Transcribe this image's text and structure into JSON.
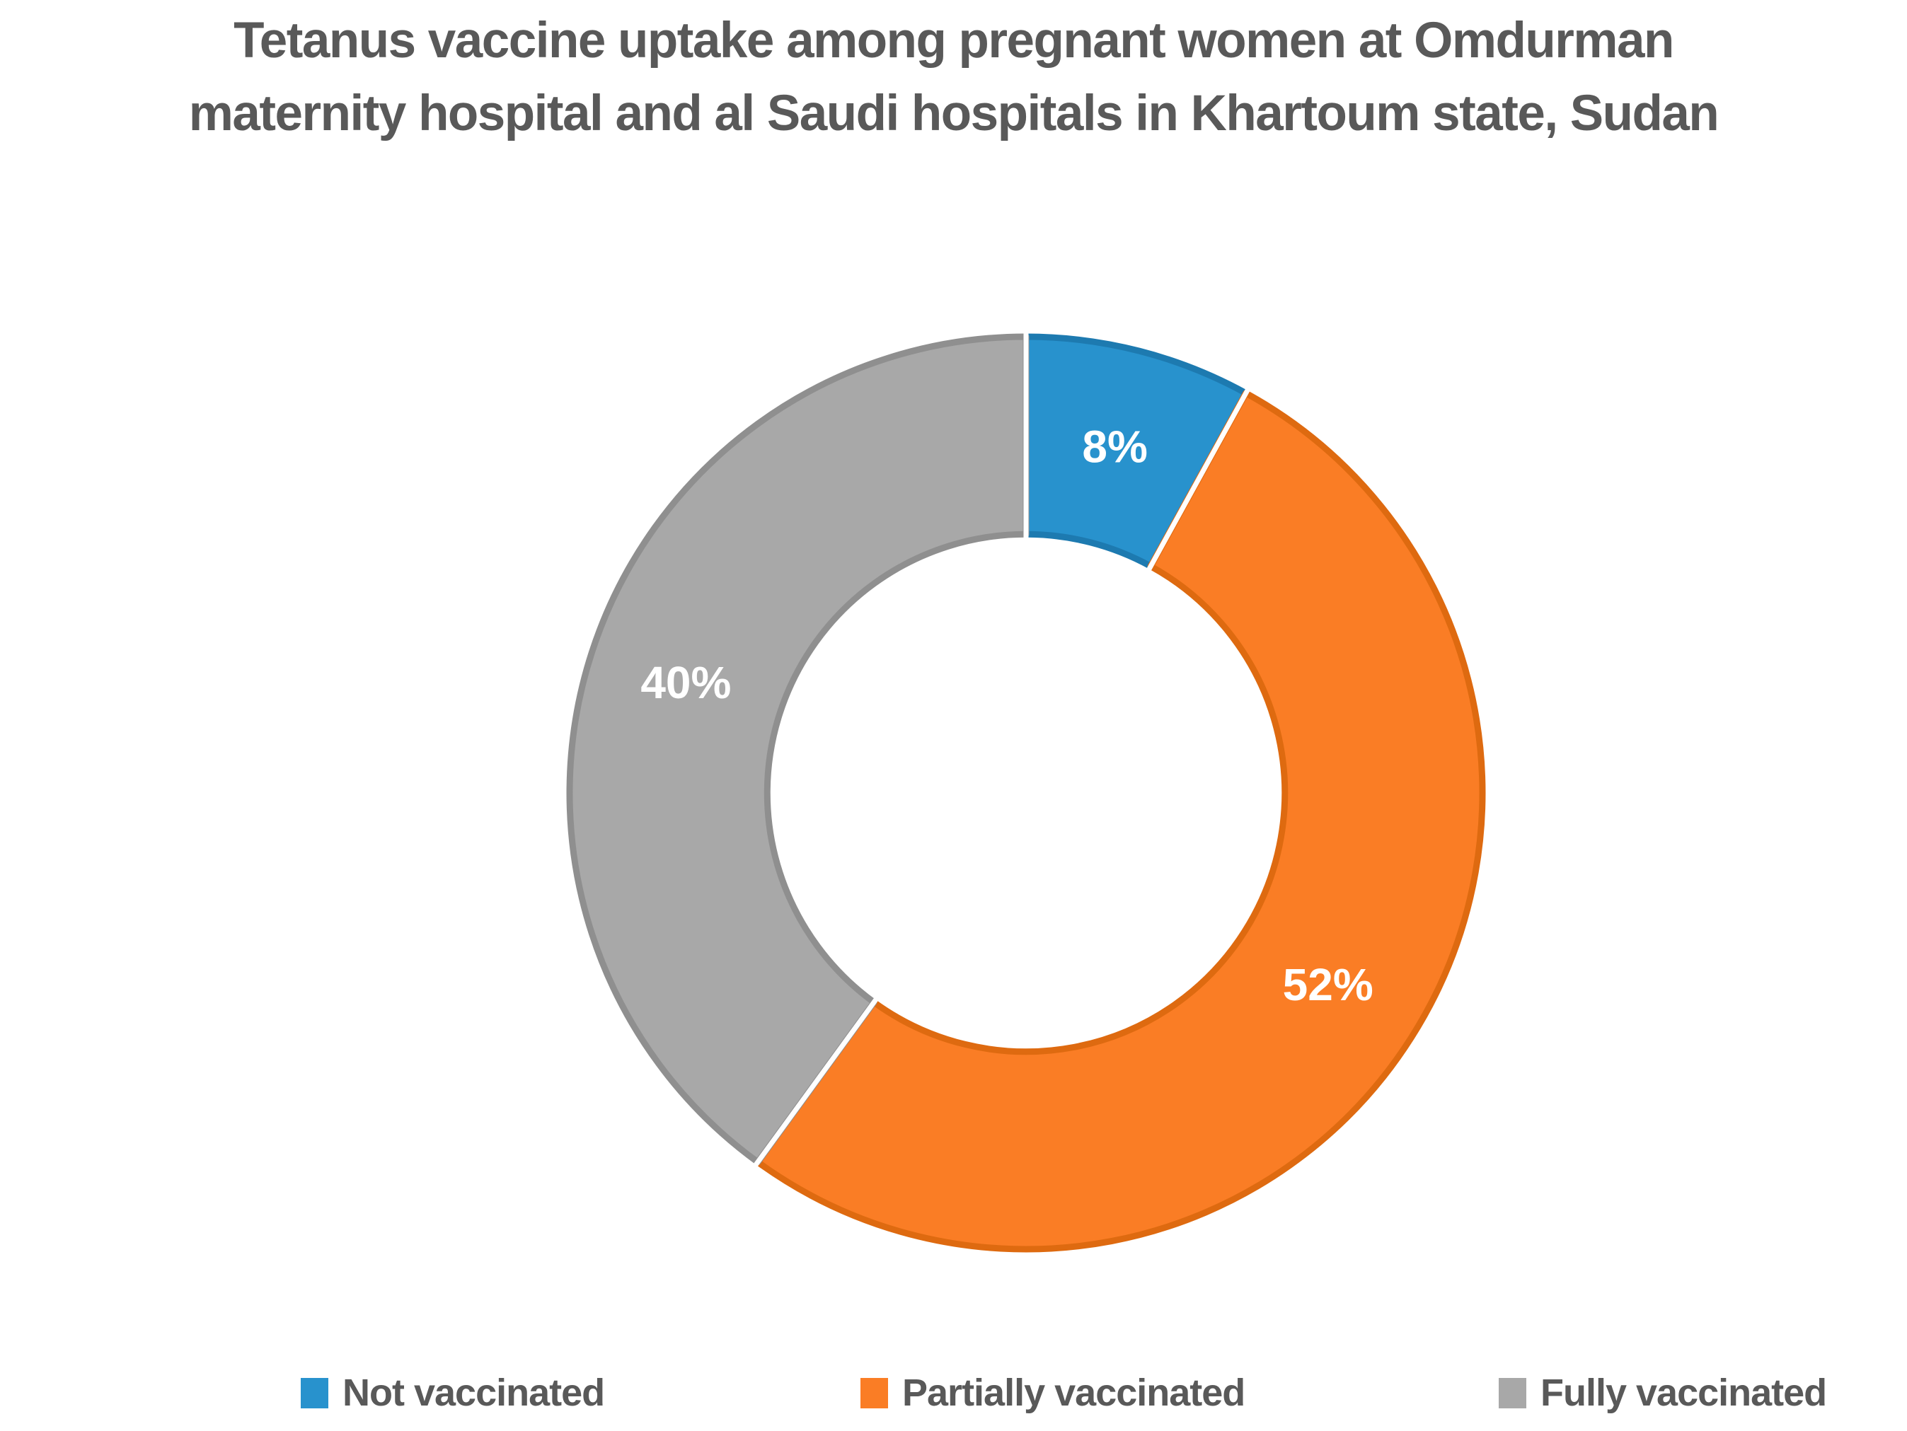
{
  "title_lines": [
    "Tetanus vaccine uptake among pregnant women at Omdurman",
    "maternity hospital and al Saudi hospitals in Khartoum state, Sudan"
  ],
  "chart_data": {
    "type": "pie",
    "subtype": "donut",
    "title": "Tetanus vaccine uptake among pregnant women at Omdurman maternity hospital and al Saudi hospitals in Khartoum state, Sudan",
    "categories": [
      "Not vaccinated",
      "Partially vaccinated",
      "Fully vaccinated"
    ],
    "values": [
      8,
      52,
      40
    ],
    "unit": "percent",
    "data_labels": [
      "8%",
      "52%",
      "40%"
    ],
    "colors": [
      "#2892CD",
      "#FA7D25",
      "#A8A8A8"
    ],
    "rim_colors": [
      "#1D7AB0",
      "#DE6A10",
      "#8F8F8F"
    ],
    "label_color": "#FFFFFF",
    "start_angle_deg": 0,
    "direction": "clockwise",
    "hole_ratio": 0.567,
    "legend_position": "bottom",
    "title_color": "#595959",
    "legend_text_color": "#595959"
  },
  "legend": {
    "items": [
      {
        "label": "Not vaccinated",
        "color": "#2892CD"
      },
      {
        "label": "Partially vaccinated",
        "color": "#FA7D25"
      },
      {
        "label": "Fully vaccinated",
        "color": "#A8A8A8"
      }
    ]
  }
}
